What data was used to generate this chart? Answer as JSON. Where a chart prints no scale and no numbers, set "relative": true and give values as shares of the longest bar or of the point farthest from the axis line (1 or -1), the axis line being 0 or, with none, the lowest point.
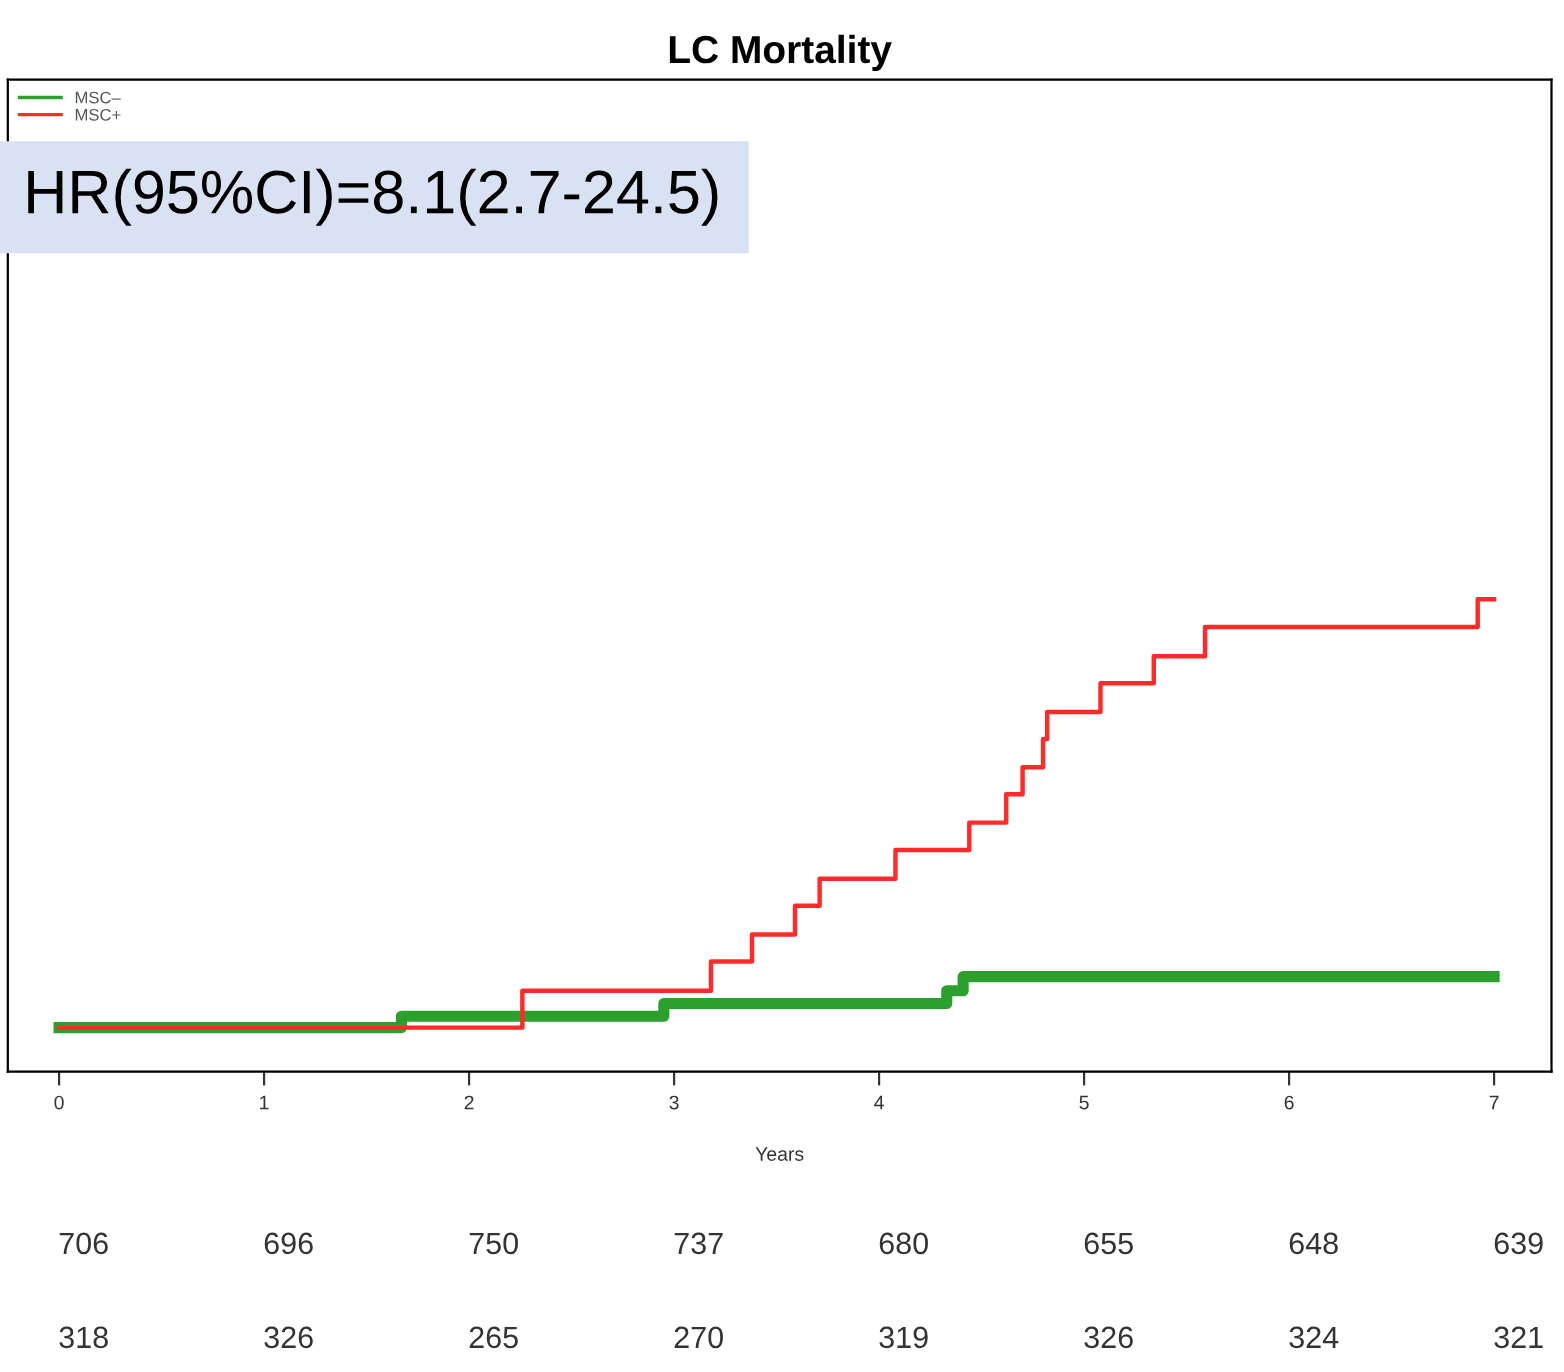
{
  "chart_data": {
    "type": "step",
    "title": "LC Mortality",
    "xlabel": "Years",
    "relative": true,
    "xlim": [
      -0.25,
      7.28
    ],
    "xticks": [
      0,
      1,
      2,
      3,
      4,
      5,
      6,
      7
    ],
    "legend": "top left",
    "grid": false,
    "series": [
      {
        "name": "MSC–",
        "color": "#2ca02c",
        "x": [
          0,
          1.67,
          2.95,
          4.33,
          4.41,
          7.0
        ],
        "values": [
          0.093,
          0.117,
          0.144,
          0.171,
          0.201,
          0.201
        ]
      },
      {
        "name": "MSC+",
        "color": "#ff2a2a",
        "x": [
          0,
          2.26,
          3.18,
          3.38,
          3.59,
          3.71,
          4.08,
          4.44,
          4.62,
          4.7,
          4.8,
          4.82,
          5.08,
          5.34,
          5.59,
          6.92,
          7.0
        ],
        "values": [
          0.093,
          0.171,
          0.233,
          0.29,
          0.351,
          0.408,
          0.469,
          0.527,
          0.587,
          0.644,
          0.704,
          0.761,
          0.822,
          0.879,
          0.941,
          1.0,
          1.0
        ]
      }
    ],
    "annotations": [
      "HR(95%CI)=8.1(2.7-24.5)",
      "706",
      "696",
      "750",
      "737",
      "680",
      "655",
      "648",
      "639",
      "318",
      "326",
      "265",
      "270",
      "319",
      "326",
      "324",
      "321"
    ]
  }
}
